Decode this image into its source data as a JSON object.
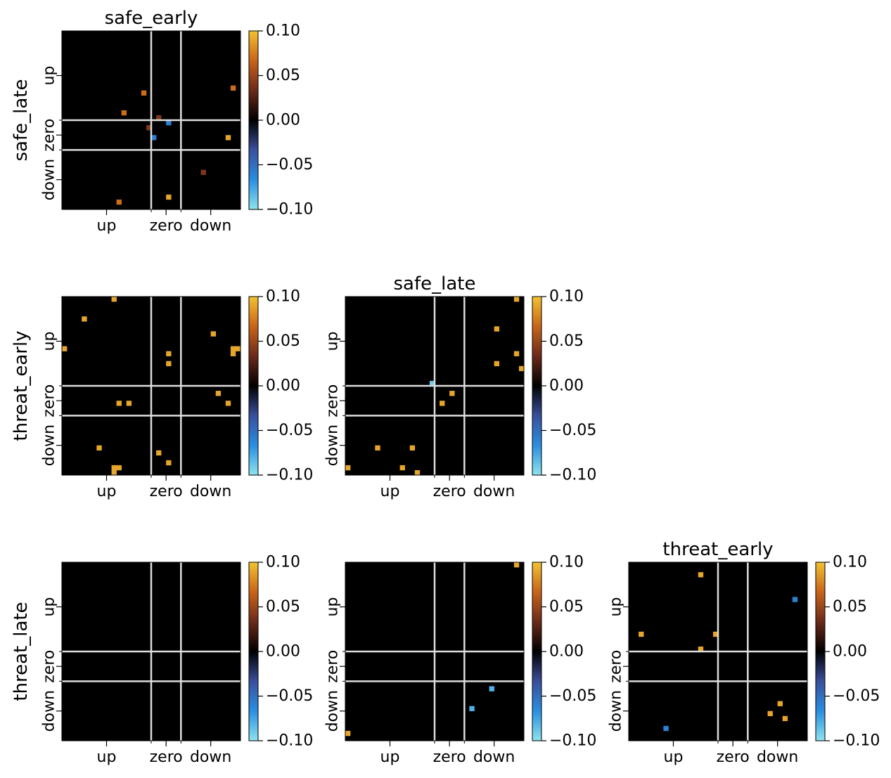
{
  "colorbar": {
    "ticks": [
      "0.10",
      "0.05",
      "0.00",
      "−0.05",
      "−0.10"
    ],
    "range": [
      -0.1,
      0.1
    ],
    "stops": [
      "#8ee3ee",
      "#2a8ee0",
      "#3a4f9c",
      "#000000",
      "#6b2a1a",
      "#c8641a",
      "#f2c232"
    ]
  },
  "panels": [
    {
      "id": "safe_early-vs-safe_late",
      "title": "safe_early",
      "row_label": "safe_late",
      "xticklabels": [
        "up",
        "zero",
        "down"
      ],
      "yticklabels": [
        "up",
        "zero",
        "down"
      ],
      "show_xticklabels": true,
      "show_row_label": true
    },
    {
      "id": "safe_early-vs-threat_early",
      "title": "",
      "row_label": "threat_early",
      "xticklabels": [
        "up",
        "zero",
        "down"
      ],
      "yticklabels": [
        "up",
        "zero",
        "down"
      ],
      "show_xticklabels": true,
      "show_row_label": true
    },
    {
      "id": "safe_late-vs-threat_early",
      "title": "safe_late",
      "row_label": "",
      "xticklabels": [
        "up",
        "zero",
        "down"
      ],
      "yticklabels": [
        "up",
        "zero",
        "down"
      ],
      "show_xticklabels": true,
      "show_row_label": false
    },
    {
      "id": "safe_early-vs-threat_late",
      "title": "",
      "row_label": "threat_late",
      "xticklabels": [
        "up",
        "zero",
        "down"
      ],
      "yticklabels": [
        "up",
        "zero",
        "down"
      ],
      "show_xticklabels": true,
      "show_row_label": true
    },
    {
      "id": "safe_late-vs-threat_late",
      "title": "",
      "row_label": "",
      "xticklabels": [
        "up",
        "zero",
        "down"
      ],
      "yticklabels": [
        "up",
        "zero",
        "down"
      ],
      "show_xticklabels": true,
      "show_row_label": false
    },
    {
      "id": "threat_early-vs-threat_late",
      "title": "threat_early",
      "row_label": "",
      "xticklabels": [
        "up",
        "zero",
        "down"
      ],
      "yticklabels": [
        "up",
        "zero",
        "down"
      ],
      "show_xticklabels": true,
      "show_row_label": false
    }
  ],
  "chart_data": {
    "type": "heatmap",
    "grid_size": 36,
    "category_boundaries": [
      18,
      24
    ],
    "categories": [
      "up",
      "zero",
      "down"
    ],
    "value_range": [
      -0.1,
      0.1
    ],
    "panels": [
      {
        "title": "safe_early",
        "row_label": "safe_late",
        "cells": [
          [
            16,
            12,
            0.07
          ],
          [
            12,
            16,
            0.07
          ],
          [
            34,
            11,
            0.07
          ],
          [
            19,
            17,
            0.04
          ],
          [
            17,
            19,
            0.04
          ],
          [
            21,
            18,
            -0.06
          ],
          [
            18,
            21,
            -0.06
          ],
          [
            33,
            21,
            0.09
          ],
          [
            28,
            28,
            0.04
          ],
          [
            21,
            33,
            0.09
          ],
          [
            11,
            34,
            0.07
          ]
        ]
      },
      {
        "title": "",
        "row_label": "threat_early",
        "cells": [
          [
            10,
            0,
            0.09
          ],
          [
            4,
            4,
            0.09
          ],
          [
            0,
            10,
            0.09
          ],
          [
            30,
            7,
            0.09
          ],
          [
            34,
            10,
            0.09
          ],
          [
            35,
            10,
            0.09
          ],
          [
            34,
            11,
            0.09
          ],
          [
            21,
            11,
            0.09
          ],
          [
            21,
            13,
            0.09
          ],
          [
            31,
            19,
            0.09
          ],
          [
            11,
            21,
            0.09
          ],
          [
            13,
            21,
            0.09
          ],
          [
            33,
            21,
            0.09
          ],
          [
            7,
            30,
            0.09
          ],
          [
            19,
            31,
            0.09
          ],
          [
            21,
            33,
            0.09
          ],
          [
            10,
            34,
            0.09
          ],
          [
            11,
            34,
            0.09
          ],
          [
            10,
            35,
            0.09
          ]
        ]
      },
      {
        "title": "safe_late",
        "row_label": "",
        "cells": [
          [
            34,
            0,
            0.09
          ],
          [
            30,
            6,
            0.09
          ],
          [
            34,
            11,
            0.09
          ],
          [
            30,
            13,
            0.09
          ],
          [
            35,
            14,
            0.09
          ],
          [
            17,
            17,
            -0.09
          ],
          [
            21,
            19,
            0.09
          ],
          [
            19,
            21,
            0.09
          ],
          [
            6,
            30,
            0.09
          ],
          [
            13,
            30,
            0.09
          ],
          [
            0,
            34,
            0.09
          ],
          [
            11,
            34,
            0.09
          ],
          [
            14,
            35,
            0.09
          ]
        ]
      },
      {
        "title": "",
        "row_label": "threat_late",
        "cells": []
      },
      {
        "title": "",
        "row_label": "",
        "cells": [
          [
            34,
            0,
            0.09
          ],
          [
            29,
            25,
            -0.08
          ],
          [
            25,
            29,
            -0.08
          ],
          [
            0,
            34,
            0.09
          ]
        ]
      },
      {
        "title": "threat_early",
        "row_label": "",
        "cells": [
          [
            14,
            2,
            0.09
          ],
          [
            33,
            7,
            -0.06
          ],
          [
            2,
            14,
            0.09
          ],
          [
            17,
            14,
            0.09
          ],
          [
            14,
            17,
            0.09
          ],
          [
            30,
            28,
            0.09
          ],
          [
            28,
            30,
            0.09
          ],
          [
            31,
            31,
            0.09
          ],
          [
            7,
            33,
            -0.06
          ]
        ]
      }
    ]
  }
}
